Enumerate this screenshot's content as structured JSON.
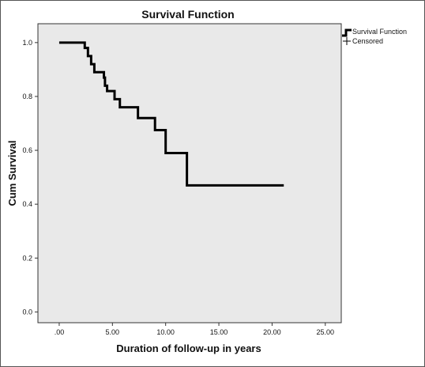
{
  "chart_data": {
    "type": "line",
    "title": "Survival Function",
    "xlabel": "Duration of follow-up in years",
    "ylabel": "Cum Survival",
    "xlim": [
      -2.0,
      26.5
    ],
    "ylim": [
      -0.04,
      1.07
    ],
    "x_ticks": [
      0,
      5,
      10,
      15,
      20,
      25
    ],
    "x_tick_labels": [
      ".00",
      "5.00",
      "10.00",
      "15.00",
      "20.00",
      "25.00"
    ],
    "y_ticks": [
      0.0,
      0.2,
      0.4,
      0.6,
      0.8,
      1.0
    ],
    "y_tick_labels": [
      "0.0",
      "0.2",
      "0.4",
      "0.6",
      "0.8",
      "1.0"
    ],
    "grid": false,
    "legend_position": "top-right, outside plot",
    "series": [
      {
        "name": "Survival Function",
        "step": true,
        "x": [
          0.0,
          2.4,
          2.7,
          3.0,
          3.3,
          3.7,
          4.2,
          4.3,
          4.5,
          5.2,
          5.7,
          7.4,
          9.0,
          10.0,
          12.0,
          21.1
        ],
        "y": [
          1.0,
          0.98,
          0.95,
          0.92,
          0.89,
          0.89,
          0.87,
          0.84,
          0.82,
          0.79,
          0.76,
          0.72,
          0.675,
          0.59,
          0.47,
          0.47
        ]
      }
    ],
    "legend": [
      {
        "label": "Survival Function",
        "symbol": "step-line"
      },
      {
        "label": "Censored",
        "symbol": "plus"
      }
    ],
    "colors": {
      "plot_background": "#e9e9e9",
      "line": "#000000"
    }
  }
}
